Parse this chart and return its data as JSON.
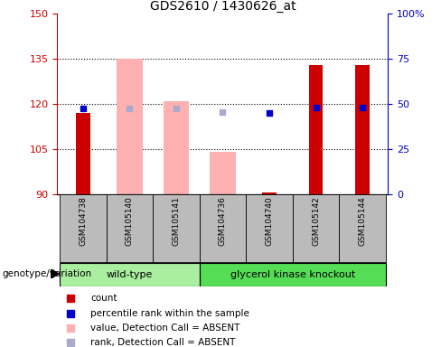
{
  "title": "GDS2610 / 1430626_at",
  "samples": [
    "GSM104738",
    "GSM105140",
    "GSM105141",
    "GSM104736",
    "GSM104740",
    "GSM105142",
    "GSM105144"
  ],
  "ymin": 90,
  "ymax": 150,
  "yticks": [
    90,
    105,
    120,
    135,
    150
  ],
  "y2ticks": [
    0,
    25,
    50,
    75,
    100
  ],
  "y2min": 0,
  "y2max": 100,
  "red_bar_top": [
    117,
    null,
    null,
    null,
    90.5,
    133,
    133
  ],
  "pink_bar_top": [
    null,
    135,
    121,
    104,
    null,
    null,
    null
  ],
  "pink_bar_bottom": [
    null,
    90,
    90,
    90,
    null,
    null,
    null
  ],
  "blue_square_y": [
    118.5,
    null,
    null,
    null,
    117,
    119,
    119
  ],
  "light_blue_square_y": [
    null,
    118.5,
    118.5,
    117.5,
    null,
    null,
    null
  ],
  "colors": {
    "red_bar": "#cc0000",
    "pink_bar": "#ffb0b0",
    "blue_sq": "#0000cc",
    "light_blue_sq": "#aaaacc",
    "wt_group": "#aaeea0",
    "gk_group": "#55dd55",
    "axis_left": "#cc0000",
    "axis_right": "#0000cc",
    "bg_sample": "#bbbbbb"
  },
  "legend": [
    {
      "label": "count",
      "color": "#cc0000"
    },
    {
      "label": "percentile rank within the sample",
      "color": "#0000cc"
    },
    {
      "label": "value, Detection Call = ABSENT",
      "color": "#ffb0b0"
    },
    {
      "label": "rank, Detection Call = ABSENT",
      "color": "#aaaacc"
    }
  ],
  "red_bar_width": 0.3,
  "pink_bar_width": 0.55
}
